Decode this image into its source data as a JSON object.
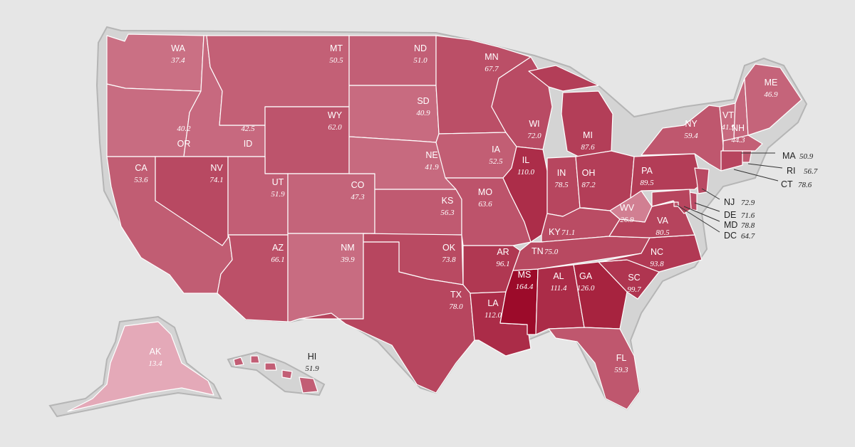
{
  "map": {
    "colors": {
      "background": "#e6e6e6",
      "scale_low": "#e4a9b8",
      "scale_high": "#9c0b2a",
      "value_min": 13.4,
      "value_max": 164.4
    },
    "states": [
      {
        "abbr": "WA",
        "value": "37.4"
      },
      {
        "abbr": "OR",
        "value": "40.2"
      },
      {
        "abbr": "CA",
        "value": "53.6"
      },
      {
        "abbr": "ID",
        "value": "42.5"
      },
      {
        "abbr": "NV",
        "value": "74.1"
      },
      {
        "abbr": "MT",
        "value": "50.5"
      },
      {
        "abbr": "WY",
        "value": "62.0"
      },
      {
        "abbr": "UT",
        "value": "51.9"
      },
      {
        "abbr": "AZ",
        "value": "66.1"
      },
      {
        "abbr": "CO",
        "value": "47.3"
      },
      {
        "abbr": "NM",
        "value": "39.9"
      },
      {
        "abbr": "ND",
        "value": "51.0"
      },
      {
        "abbr": "SD",
        "value": "40.9"
      },
      {
        "abbr": "NE",
        "value": "41.9"
      },
      {
        "abbr": "KS",
        "value": "56.3"
      },
      {
        "abbr": "OK",
        "value": "73.8"
      },
      {
        "abbr": "TX",
        "value": "78.0"
      },
      {
        "abbr": "MN",
        "value": "67.7"
      },
      {
        "abbr": "IA",
        "value": "52.5"
      },
      {
        "abbr": "MO",
        "value": "63.6"
      },
      {
        "abbr": "AR",
        "value": "96.1"
      },
      {
        "abbr": "LA",
        "value": "112.0"
      },
      {
        "abbr": "WI",
        "value": "72.0"
      },
      {
        "abbr": "IL",
        "value": "110.0"
      },
      {
        "abbr": "MS",
        "value": "164.4"
      },
      {
        "abbr": "MI",
        "value": "87.6"
      },
      {
        "abbr": "IN",
        "value": "78.5"
      },
      {
        "abbr": "OH",
        "value": "87.2"
      },
      {
        "abbr": "KY",
        "value": "71.1"
      },
      {
        "abbr": "TN",
        "value": "75.0"
      },
      {
        "abbr": "AL",
        "value": "111.4"
      },
      {
        "abbr": "GA",
        "value": "126.0"
      },
      {
        "abbr": "FL",
        "value": "59.3"
      },
      {
        "abbr": "SC",
        "value": "99.7"
      },
      {
        "abbr": "NC",
        "value": "93.8"
      },
      {
        "abbr": "VA",
        "value": "80.5"
      },
      {
        "abbr": "WV",
        "value": "26.9"
      },
      {
        "abbr": "PA",
        "value": "89.5"
      },
      {
        "abbr": "NY",
        "value": "59.4"
      },
      {
        "abbr": "VT",
        "value": "41.9"
      },
      {
        "abbr": "NH",
        "value": "44.3"
      },
      {
        "abbr": "ME",
        "value": "46.9"
      },
      {
        "abbr": "MA",
        "value": "50.9"
      },
      {
        "abbr": "RI",
        "value": "56.7"
      },
      {
        "abbr": "CT",
        "value": "78.6"
      },
      {
        "abbr": "NJ",
        "value": "72.9"
      },
      {
        "abbr": "DE",
        "value": "71.6"
      },
      {
        "abbr": "MD",
        "value": "78.8"
      },
      {
        "abbr": "DC",
        "value": "64.7"
      },
      {
        "abbr": "AK",
        "value": "13.4"
      },
      {
        "abbr": "HI",
        "value": "51.9"
      }
    ]
  }
}
